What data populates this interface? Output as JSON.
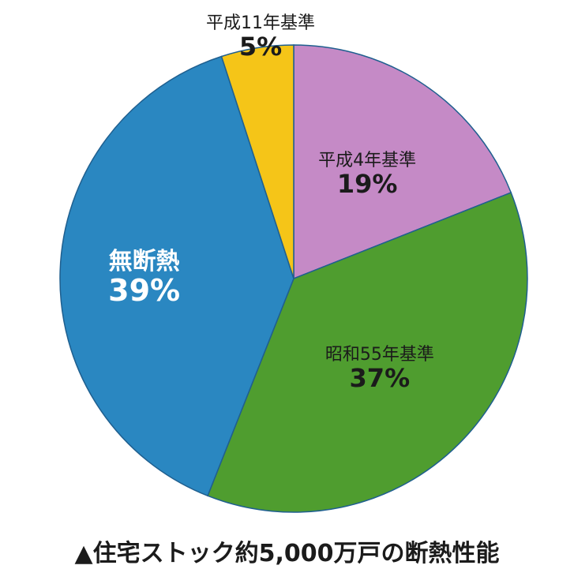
{
  "chart_data": {
    "type": "pie",
    "slices": [
      {
        "label": "平成4年基準",
        "value": 19,
        "value_label": "19%",
        "color": "#c58ac6",
        "label_color": "#1b1b1b"
      },
      {
        "label": "昭和55年基準",
        "value": 37,
        "value_label": "37%",
        "color": "#4f9d2f",
        "label_color": "#1b1b1b"
      },
      {
        "label": "無断熱",
        "value": 39,
        "value_label": "39%",
        "color": "#2a87c1",
        "label_color": "#ffffff"
      },
      {
        "label": "平成11年基準",
        "value": 5,
        "value_label": "5%",
        "color": "#f5c518",
        "label_color": "#1b1b1b"
      }
    ],
    "caption": "▲住宅ストック約5,000万戸の断熱性能"
  }
}
